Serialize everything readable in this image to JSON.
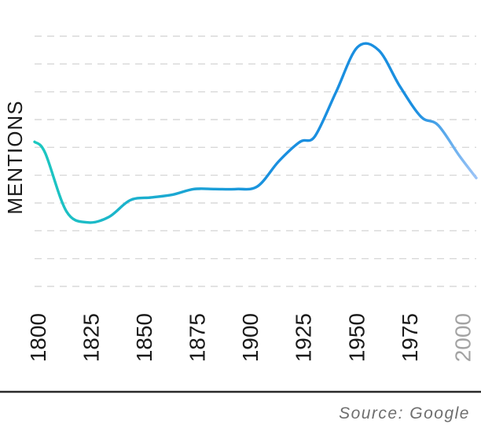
{
  "chart_data": {
    "type": "line",
    "ylabel": "MENTIONS",
    "x_ticks": [
      "1800",
      "1825",
      "1850",
      "1875",
      "1900",
      "1925",
      "1950",
      "1975",
      "2000"
    ],
    "x_range": [
      1800,
      2008
    ],
    "y_range": [
      0,
      9
    ],
    "grid": true,
    "x": [
      1800,
      1805,
      1815,
      1825,
      1835,
      1845,
      1855,
      1865,
      1875,
      1885,
      1895,
      1905,
      1915,
      1925,
      1932,
      1942,
      1952,
      1962,
      1972,
      1982,
      1990,
      2000,
      2008
    ],
    "y": [
      5.2,
      4.8,
      2.7,
      2.3,
      2.5,
      3.1,
      3.2,
      3.3,
      3.5,
      3.5,
      3.5,
      3.6,
      4.5,
      5.2,
      5.4,
      7.0,
      8.6,
      8.5,
      7.2,
      6.1,
      5.8,
      4.7,
      3.9
    ],
    "colors": {
      "line_start": "#1cc8c0",
      "line_mid": "#1a8fe0",
      "line_end": "#9cc4f7",
      "grid": "#d9d9d9",
      "axis": "#2a2a2a"
    }
  },
  "footer": {
    "source": "Source: Google"
  }
}
